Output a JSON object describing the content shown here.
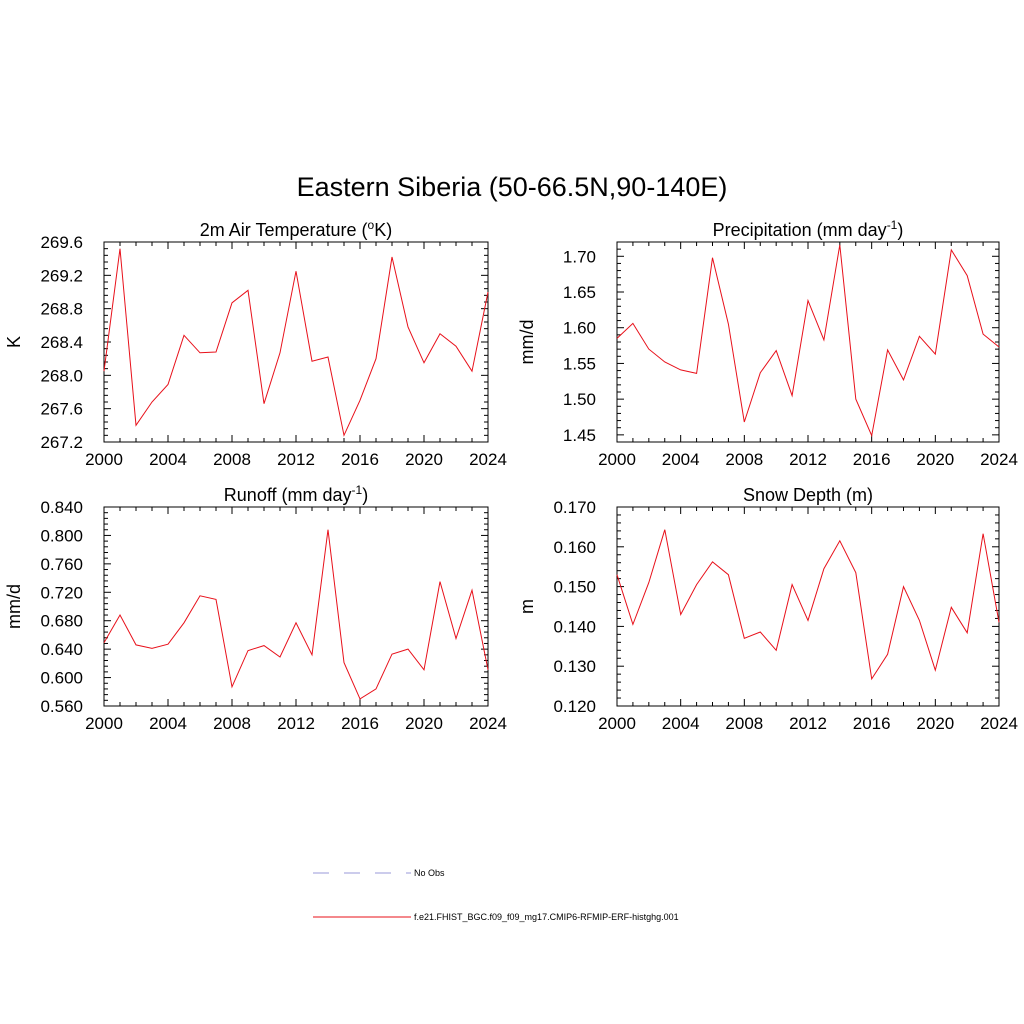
{
  "figure": {
    "title": "Eastern Siberia (50-66.5N,90-140E)"
  },
  "colors": {
    "model": "#e8101a",
    "obs": "#9a9ad8"
  },
  "legend": [
    {
      "label": "No Obs",
      "style": "dashed",
      "color": "#9a9ad8"
    },
    {
      "label": "f.e21.FHIST_BGC.f09_f09_mg17.CMIP6-RFMIP-ERF-histghg.001",
      "style": "solid",
      "color": "#e8101a"
    }
  ],
  "chart_data": [
    {
      "id": "temp",
      "type": "line",
      "title": "2m Air Temperature (",
      "title_super": "o",
      "title_after": "K)",
      "ylabel": "K",
      "xlim": [
        2000,
        2024
      ],
      "ylim": [
        267.2,
        269.6
      ],
      "xticks": [
        2000,
        2004,
        2008,
        2012,
        2016,
        2020,
        2024
      ],
      "xtick_labels": [
        "2000",
        "2004",
        "2008",
        "2012",
        "2016",
        "2020",
        "2024"
      ],
      "yticks": [
        267.2,
        267.6,
        268.0,
        268.4,
        268.8,
        269.2,
        269.6
      ],
      "ytick_labels": [
        "267.2",
        "267.6",
        "268.0",
        "268.4",
        "268.8",
        "269.2",
        "269.6"
      ],
      "series": [
        {
          "x": [
            2000,
            2001,
            2002,
            2003,
            2004,
            2005,
            2006,
            2007,
            2008,
            2009,
            2010,
            2011,
            2012,
            2013,
            2014,
            2015,
            2016,
            2017,
            2018,
            2019,
            2020,
            2021,
            2022,
            2023,
            2024
          ],
          "y": [
            268.05,
            269.52,
            267.4,
            267.68,
            267.89,
            268.48,
            268.27,
            268.28,
            268.87,
            269.02,
            267.66,
            268.27,
            269.25,
            268.17,
            268.22,
            267.28,
            267.7,
            268.2,
            269.42,
            268.58,
            268.15,
            268.5,
            268.35,
            268.05,
            269.0
          ]
        }
      ]
    },
    {
      "id": "precip",
      "type": "line",
      "title": "Precipitation (mm day",
      "title_super": "-1",
      "title_after": ")",
      "ylabel": "mm/d",
      "xlim": [
        2000,
        2024
      ],
      "ylim": [
        1.44,
        1.72
      ],
      "xticks": [
        2000,
        2004,
        2008,
        2012,
        2016,
        2020,
        2024
      ],
      "xtick_labels": [
        "2000",
        "2004",
        "2008",
        "2012",
        "2016",
        "2020",
        "2024"
      ],
      "yticks": [
        1.45,
        1.5,
        1.55,
        1.6,
        1.65,
        1.7
      ],
      "ytick_labels": [
        "1.45",
        "1.50",
        "1.55",
        "1.60",
        "1.65",
        "1.70"
      ],
      "series": [
        {
          "x": [
            2000,
            2001,
            2002,
            2003,
            2004,
            2005,
            2006,
            2007,
            2008,
            2009,
            2010,
            2011,
            2012,
            2013,
            2014,
            2015,
            2016,
            2017,
            2018,
            2019,
            2020,
            2021,
            2022,
            2023,
            2024
          ],
          "y": [
            1.585,
            1.606,
            1.57,
            1.552,
            1.541,
            1.536,
            1.698,
            1.605,
            1.468,
            1.537,
            1.568,
            1.505,
            1.638,
            1.583,
            1.716,
            1.5,
            1.449,
            1.569,
            1.527,
            1.588,
            1.563,
            1.709,
            1.673,
            1.591,
            1.573
          ]
        }
      ]
    },
    {
      "id": "runoff",
      "type": "line",
      "title": "Runoff (mm day",
      "title_super": "-1",
      "title_after": ")",
      "ylabel": "mm/d",
      "xlim": [
        2000,
        2024
      ],
      "ylim": [
        0.56,
        0.84
      ],
      "xticks": [
        2000,
        2004,
        2008,
        2012,
        2016,
        2020,
        2024
      ],
      "xtick_labels": [
        "2000",
        "2004",
        "2008",
        "2012",
        "2016",
        "2020",
        "2024"
      ],
      "yticks": [
        0.56,
        0.6,
        0.64,
        0.68,
        0.72,
        0.76,
        0.8,
        0.84
      ],
      "ytick_labels": [
        "0.560",
        "0.600",
        "0.640",
        "0.680",
        "0.720",
        "0.760",
        "0.800",
        "0.840"
      ],
      "series": [
        {
          "x": [
            2000,
            2001,
            2002,
            2003,
            2004,
            2005,
            2006,
            2007,
            2008,
            2009,
            2010,
            2011,
            2012,
            2013,
            2014,
            2015,
            2016,
            2017,
            2018,
            2019,
            2020,
            2021,
            2022,
            2023,
            2024
          ],
          "y": [
            0.649,
            0.688,
            0.646,
            0.641,
            0.647,
            0.677,
            0.715,
            0.71,
            0.587,
            0.638,
            0.645,
            0.629,
            0.677,
            0.632,
            0.808,
            0.621,
            0.57,
            0.584,
            0.633,
            0.64,
            0.611,
            0.735,
            0.655,
            0.723,
            0.611
          ]
        }
      ]
    },
    {
      "id": "snow",
      "type": "line",
      "title": "Snow Depth (m)",
      "title_super": "",
      "title_after": "",
      "ylabel": "m",
      "xlim": [
        2000,
        2024
      ],
      "ylim": [
        0.12,
        0.17
      ],
      "xticks": [
        2000,
        2004,
        2008,
        2012,
        2016,
        2020,
        2024
      ],
      "xtick_labels": [
        "2000",
        "2004",
        "2008",
        "2012",
        "2016",
        "2020",
        "2024"
      ],
      "yticks": [
        0.12,
        0.13,
        0.14,
        0.15,
        0.16,
        0.17
      ],
      "ytick_labels": [
        "0.120",
        "0.130",
        "0.140",
        "0.150",
        "0.160",
        "0.170"
      ],
      "series": [
        {
          "x": [
            2000,
            2001,
            2002,
            2003,
            2004,
            2005,
            2006,
            2007,
            2008,
            2009,
            2010,
            2011,
            2012,
            2013,
            2014,
            2015,
            2016,
            2017,
            2018,
            2019,
            2020,
            2021,
            2022,
            2023,
            2024
          ],
          "y": [
            0.153,
            0.1405,
            0.151,
            0.1643,
            0.143,
            0.1505,
            0.1562,
            0.153,
            0.137,
            0.1386,
            0.134,
            0.1505,
            0.1415,
            0.1545,
            0.1615,
            0.1535,
            0.1268,
            0.133,
            0.15,
            0.1415,
            0.129,
            0.1448,
            0.1384,
            0.1633,
            0.141
          ]
        }
      ]
    }
  ]
}
